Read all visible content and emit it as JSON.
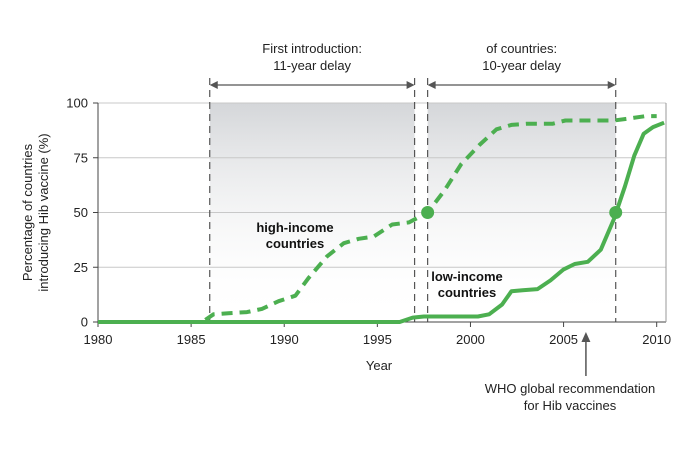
{
  "chart_data": {
    "type": "line",
    "title": "",
    "xlabel": "Year",
    "ylabel": "Percentage of countries introducing Hib vaccine (%)",
    "ylabel_lines": [
      "Percentage of countries",
      "introducing Hib vaccine (%)"
    ],
    "xlim": [
      1980,
      2010.5
    ],
    "ylim": [
      0,
      100
    ],
    "x_ticks": [
      1980,
      1985,
      1990,
      1995,
      2000,
      2005,
      2010
    ],
    "y_ticks": [
      0,
      25,
      50,
      75,
      100
    ],
    "grid": "horizontal",
    "colors": {
      "series": "#4caf50",
      "grid": "#c8c8c8",
      "shade": "#dcdde0",
      "annotation": "#555555"
    },
    "series": [
      {
        "name": "high-income countries",
        "label_lines": [
          "high-income",
          "countries"
        ],
        "style": "dashed",
        "points": [
          [
            1980,
            0
          ],
          [
            1985.6,
            0
          ],
          [
            1986.2,
            3.5
          ],
          [
            1987,
            4
          ],
          [
            1988,
            4.5
          ],
          [
            1988.8,
            6
          ],
          [
            1989.7,
            9.5
          ],
          [
            1990.6,
            12
          ],
          [
            1991.3,
            20
          ],
          [
            1992.3,
            30
          ],
          [
            1993.2,
            36
          ],
          [
            1994,
            38
          ],
          [
            1994.8,
            39
          ],
          [
            1995.8,
            44.5
          ],
          [
            1996.7,
            45.5
          ],
          [
            1997.7,
            50
          ],
          [
            1998.6,
            60
          ],
          [
            1999.5,
            72
          ],
          [
            2000.5,
            81
          ],
          [
            2001.4,
            88
          ],
          [
            2002.2,
            90
          ],
          [
            2003,
            90.5
          ],
          [
            2004.4,
            90.5
          ],
          [
            2005.1,
            92
          ],
          [
            2006.5,
            92
          ],
          [
            2007.7,
            92
          ],
          [
            2008.6,
            93
          ],
          [
            2009.4,
            94
          ],
          [
            2010,
            94
          ]
        ]
      },
      {
        "name": "low-income countries",
        "label_lines": [
          "low-income",
          "countries"
        ],
        "style": "solid",
        "points": [
          [
            1980,
            0
          ],
          [
            1996.2,
            0
          ],
          [
            1996.9,
            2
          ],
          [
            1997.5,
            2.5
          ],
          [
            1998.5,
            2.5
          ],
          [
            1999.5,
            2.5
          ],
          [
            2000.4,
            2.5
          ],
          [
            2001,
            3.5
          ],
          [
            2001.7,
            8
          ],
          [
            2002.2,
            14
          ],
          [
            2002.8,
            14.5
          ],
          [
            2003.6,
            15
          ],
          [
            2004.3,
            19
          ],
          [
            2005,
            24
          ],
          [
            2005.6,
            26.5
          ],
          [
            2006.3,
            27.5
          ],
          [
            2007,
            33
          ],
          [
            2007.7,
            47
          ],
          [
            2008.3,
            62
          ],
          [
            2008.8,
            76
          ],
          [
            2009.3,
            86
          ],
          [
            2009.8,
            89
          ],
          [
            2010.4,
            91
          ]
        ]
      }
    ],
    "markers": [
      {
        "x": 1997.7,
        "y": 50
      },
      {
        "x": 2007.8,
        "y": 50
      }
    ],
    "shaded_regions": [
      {
        "x0": 1986,
        "x1": 1997
      },
      {
        "x0": 1997.7,
        "x1": 2007.8
      }
    ],
    "annotations": [
      {
        "text_lines": [
          "First introduction:",
          "11-year delay"
        ],
        "x0": 1986,
        "x1": 1997
      },
      {
        "text_lines": [
          "of countries:",
          "10-year delay"
        ],
        "x0": 1997.7,
        "x1": 2007.8
      }
    ],
    "recommendation": {
      "year": 2006.2,
      "text_lines": [
        "WHO global recommendation",
        "for Hib vaccines"
      ]
    }
  }
}
